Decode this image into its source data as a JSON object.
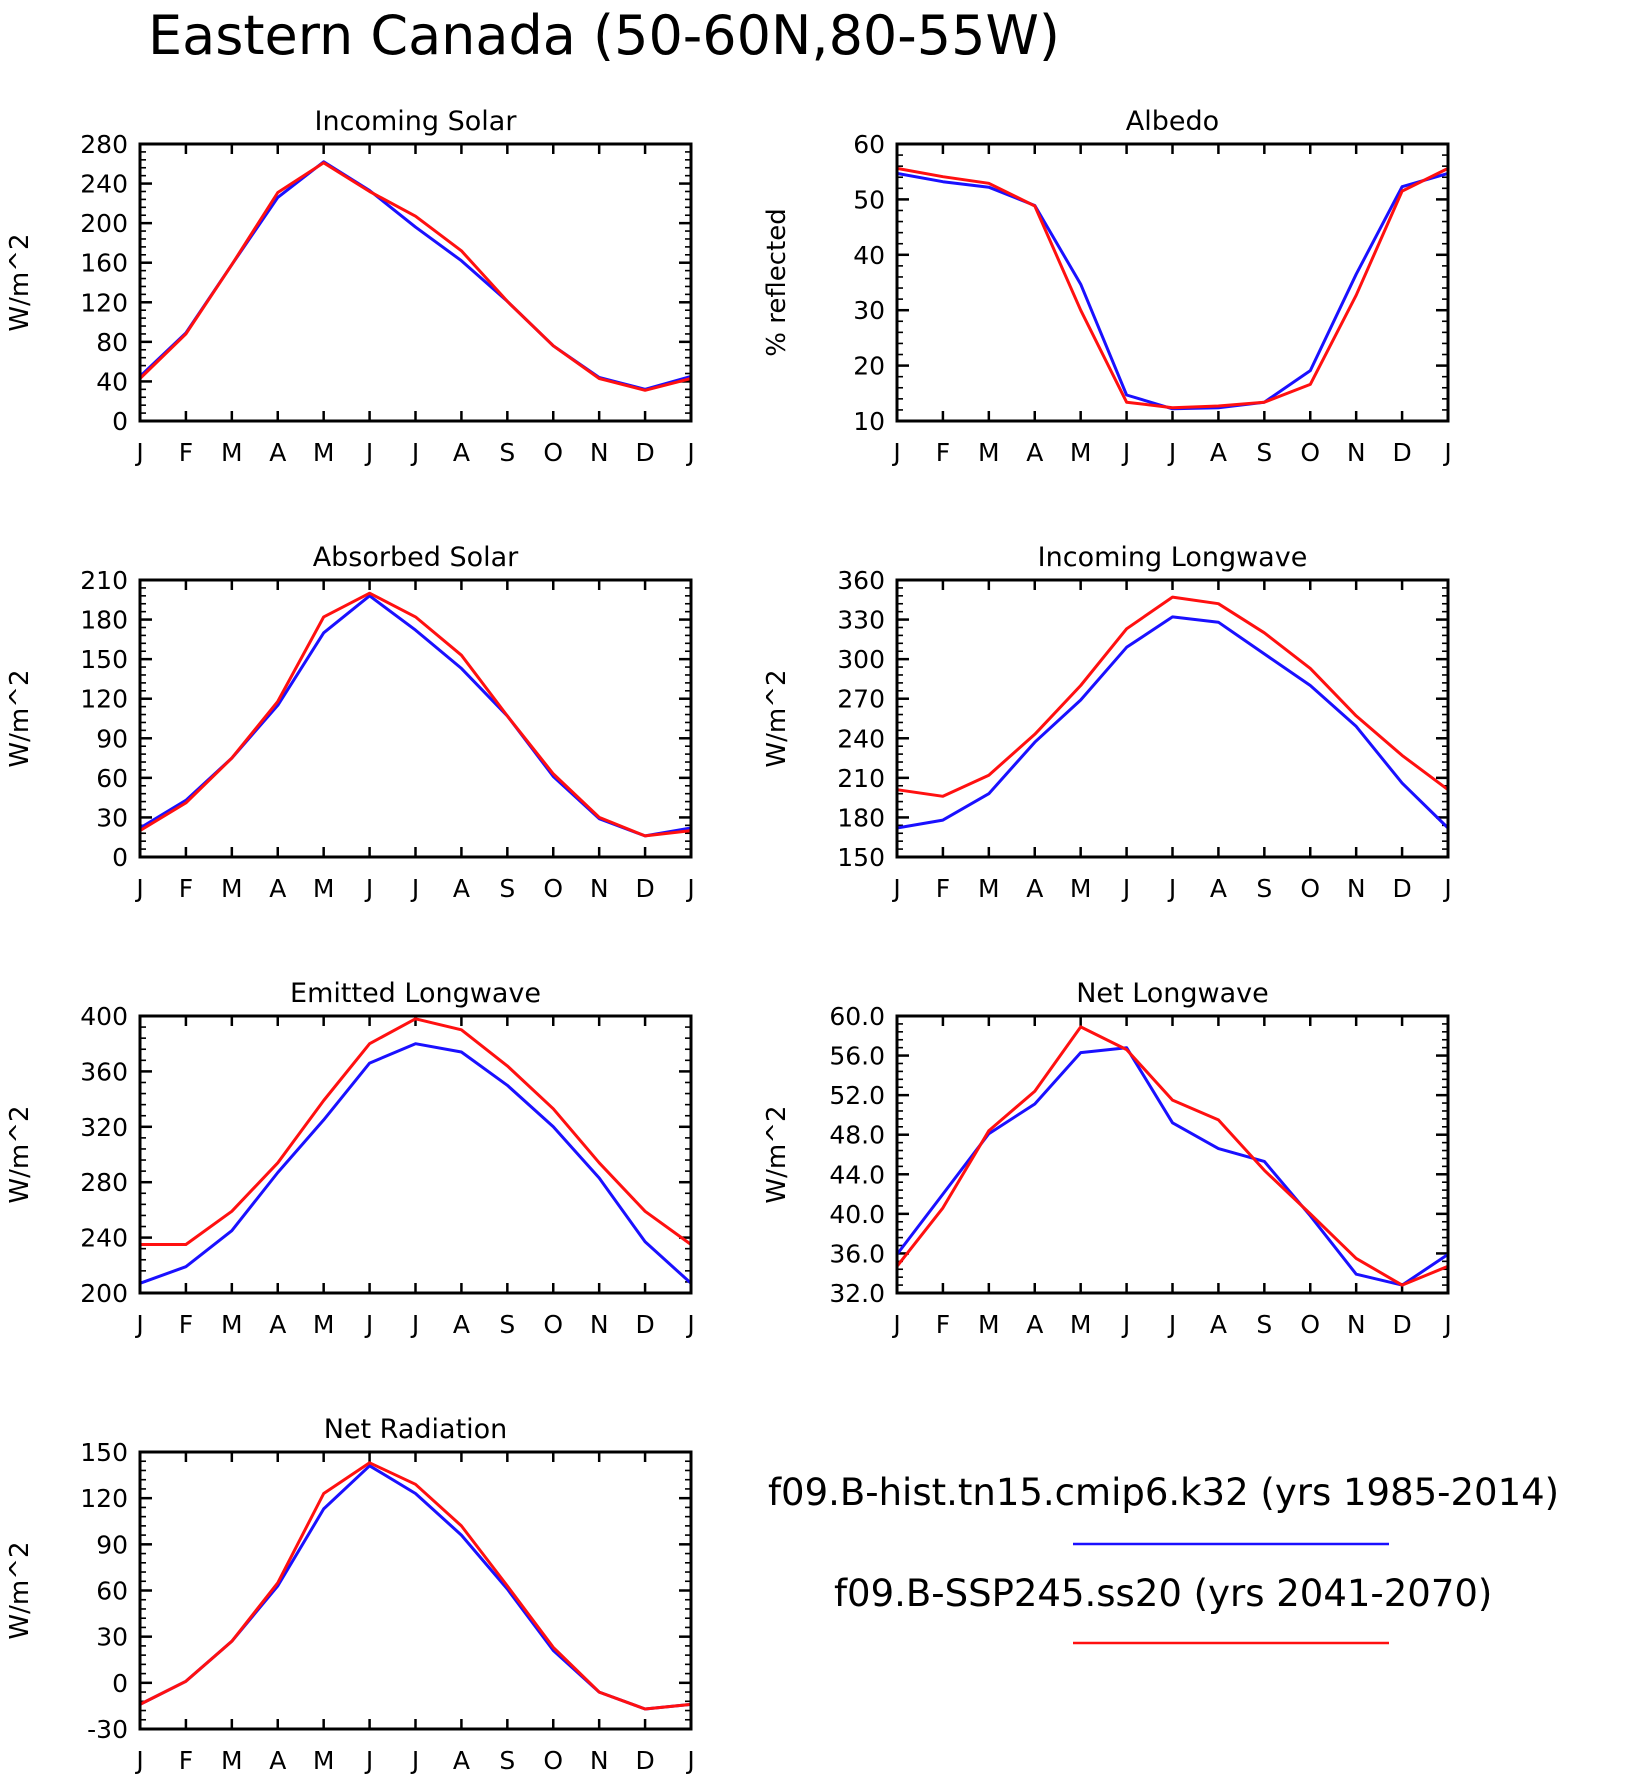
{
  "figure_title": "Eastern Canada (50-60N,80-55W)",
  "colors": {
    "hist": "#1a10ff",
    "ssp": "#ff1010"
  },
  "legend": {
    "hist_label": "f09.B-hist.tn15.cmip6.k32 (yrs 1985-2014)",
    "ssp_label": "f09.B-SSP245.ss20 (yrs 2041-2070)"
  },
  "chart_data": [
    {
      "type": "line",
      "title": "Incoming Solar",
      "ylabel": "W/m^2",
      "categories": [
        "J",
        "F",
        "M",
        "A",
        "M",
        "J",
        "J",
        "A",
        "S",
        "O",
        "N",
        "D",
        "J"
      ],
      "ylim": [
        0,
        280
      ],
      "yticks": [
        0,
        40,
        80,
        120,
        160,
        200,
        240,
        280
      ],
      "ytick_labels": [
        "0",
        "40",
        "80",
        "120",
        "160",
        "200",
        "240",
        "280"
      ],
      "series": [
        {
          "key": "hist",
          "values": [
            45,
            89,
            158,
            226,
            262,
            233,
            196,
            162,
            121,
            76,
            44,
            32,
            45
          ]
        },
        {
          "key": "ssp",
          "values": [
            43,
            88,
            158,
            231,
            261,
            232,
            207,
            172,
            121,
            76,
            43,
            31,
            43
          ]
        }
      ]
    },
    {
      "type": "line",
      "title": "Albedo",
      "ylabel": "% reflected",
      "categories": [
        "J",
        "F",
        "M",
        "A",
        "M",
        "J",
        "J",
        "A",
        "S",
        "O",
        "N",
        "D",
        "J"
      ],
      "ylim": [
        10,
        60
      ],
      "yticks": [
        10,
        20,
        30,
        40,
        50,
        60
      ],
      "ytick_labels": [
        "10",
        "20",
        "30",
        "40",
        "50",
        "60"
      ],
      "series": [
        {
          "key": "hist",
          "values": [
            54.7,
            53.2,
            52.2,
            48.9,
            34.7,
            14.7,
            12.2,
            12.4,
            13.4,
            19.1,
            36.5,
            52.3,
            54.7
          ]
        },
        {
          "key": "ssp",
          "values": [
            55.6,
            54.1,
            52.9,
            48.8,
            30.0,
            13.4,
            12.4,
            12.7,
            13.4,
            16.6,
            32.7,
            51.5,
            55.6
          ]
        }
      ]
    },
    {
      "type": "line",
      "title": "Absorbed Solar",
      "ylabel": "W/m^2",
      "categories": [
        "J",
        "F",
        "M",
        "A",
        "M",
        "J",
        "J",
        "A",
        "S",
        "O",
        "N",
        "D",
        "J"
      ],
      "ylim": [
        0,
        210
      ],
      "yticks": [
        0,
        30,
        60,
        90,
        120,
        150,
        180,
        210
      ],
      "ytick_labels": [
        "0",
        "30",
        "60",
        "90",
        "120",
        "150",
        "180",
        "210"
      ],
      "series": [
        {
          "key": "hist",
          "values": [
            22,
            43,
            75,
            115,
            170,
            198,
            172,
            143,
            107,
            61,
            29,
            16,
            22
          ]
        },
        {
          "key": "ssp",
          "values": [
            20,
            41,
            75,
            118,
            182,
            200,
            182,
            153,
            107,
            63,
            30,
            16,
            20
          ]
        }
      ]
    },
    {
      "type": "line",
      "title": "Incoming Longwave",
      "ylabel": "W/m^2",
      "categories": [
        "J",
        "F",
        "M",
        "A",
        "M",
        "J",
        "J",
        "A",
        "S",
        "O",
        "N",
        "D",
        "J"
      ],
      "ylim": [
        150,
        360
      ],
      "yticks": [
        150,
        180,
        210,
        240,
        270,
        300,
        330,
        360
      ],
      "ytick_labels": [
        "150",
        "180",
        "210",
        "240",
        "270",
        "300",
        "330",
        "360"
      ],
      "series": [
        {
          "key": "hist",
          "values": [
            172,
            178,
            198,
            237,
            269,
            309,
            332,
            328,
            304,
            280,
            249,
            206,
            172
          ]
        },
        {
          "key": "ssp",
          "values": [
            201,
            196,
            212,
            243,
            280,
            323,
            347,
            342,
            320,
            293,
            257,
            227,
            201
          ]
        }
      ]
    },
    {
      "type": "line",
      "title": "Emitted Longwave",
      "ylabel": "W/m^2",
      "categories": [
        "J",
        "F",
        "M",
        "A",
        "M",
        "J",
        "J",
        "A",
        "S",
        "O",
        "N",
        "D",
        "J"
      ],
      "ylim": [
        200,
        400
      ],
      "yticks": [
        200,
        240,
        280,
        320,
        360,
        400
      ],
      "ytick_labels": [
        "200",
        "240",
        "280",
        "320",
        "360",
        "400"
      ],
      "series": [
        {
          "key": "hist",
          "values": [
            207,
            219,
            245,
            287,
            325,
            366,
            380,
            374,
            350,
            320,
            283,
            237,
            207
          ]
        },
        {
          "key": "ssp",
          "values": [
            235,
            235,
            259,
            294,
            339,
            380,
            398,
            390,
            364,
            333,
            294,
            259,
            235
          ]
        }
      ]
    },
    {
      "type": "line",
      "title": "Net Longwave",
      "ylabel": "W/m^2",
      "categories": [
        "J",
        "F",
        "M",
        "A",
        "M",
        "J",
        "J",
        "A",
        "S",
        "O",
        "N",
        "D",
        "J"
      ],
      "ylim": [
        32,
        60
      ],
      "yticks": [
        32,
        36,
        40,
        44,
        48,
        52,
        56,
        60
      ],
      "ytick_labels": [
        "32.0",
        "36.0",
        "40.0",
        "44.0",
        "48.0",
        "52.0",
        "56.0",
        "60.0"
      ],
      "series": [
        {
          "key": "hist",
          "values": [
            35.9,
            42.0,
            48.1,
            51.1,
            56.3,
            56.8,
            49.2,
            46.6,
            45.3,
            39.8,
            33.9,
            32.8,
            35.9
          ]
        },
        {
          "key": "ssp",
          "values": [
            34.7,
            40.6,
            48.4,
            52.4,
            58.9,
            56.6,
            51.5,
            49.5,
            44.4,
            40.0,
            35.5,
            32.8,
            34.7
          ]
        }
      ]
    },
    {
      "type": "line",
      "title": "Net Radiation",
      "ylabel": "W/m^2",
      "categories": [
        "J",
        "F",
        "M",
        "A",
        "M",
        "J",
        "J",
        "A",
        "S",
        "O",
        "N",
        "D",
        "J"
      ],
      "ylim": [
        -30,
        150
      ],
      "yticks": [
        -30,
        0,
        30,
        60,
        90,
        120,
        150
      ],
      "ytick_labels": [
        "-30",
        "0",
        "30",
        "60",
        "90",
        "120",
        "150"
      ],
      "series": [
        {
          "key": "hist",
          "values": [
            -14,
            1,
            27,
            63,
            113,
            141,
            123,
            96,
            61,
            21,
            -6,
            -17,
            -14
          ]
        },
        {
          "key": "ssp",
          "values": [
            -14,
            1,
            27,
            65,
            123,
            143,
            129,
            102,
            63,
            23,
            -6,
            -17,
            -14
          ]
        }
      ]
    }
  ]
}
